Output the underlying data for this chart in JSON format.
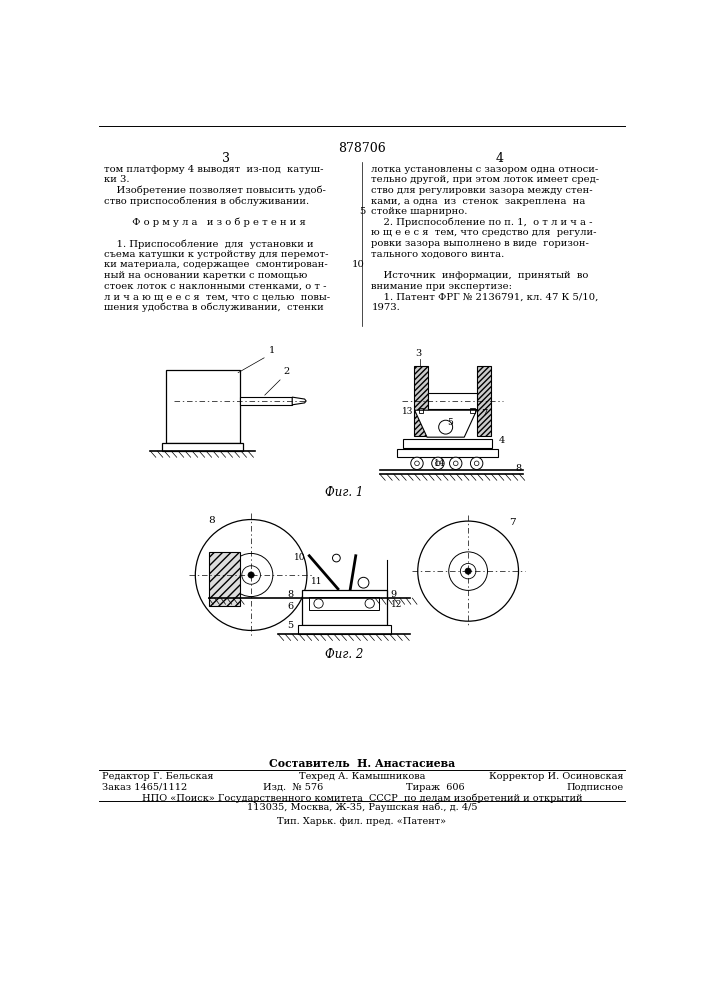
{
  "bg_color": "#ffffff",
  "page_number_center": "878706",
  "page_col_left": "3",
  "page_col_right": "4",
  "left_col_text": [
    "том платформу 4 выводят  из-под  катуш-",
    "ки 3.",
    "    Изобретение позволяет повысить удоб-",
    "ство приспособления в обслуживании.",
    "",
    "         Ф о р м у л а   и з о б р е т е н и я",
    "",
    "    1. Приспособление  для  установки и",
    "съема катушки к устройству для перемот-",
    "ки материала, содержащее  смонтирован-",
    "ный на основании каретки с помощью",
    "стоек лоток с наклонными стенками, о т -",
    "л и ч а ю щ е е с я  тем, что с целью  повы-",
    "шения удобства в обслуживании,  стенки"
  ],
  "right_col_text": [
    "лотка установлены с зазором одна относи-",
    "тельно другой, при этом лоток имеет сред-",
    "ство для регулировки зазора между стен-",
    "ками, а одна  из  стенок  закреплена  на",
    "стойке шарнирно.",
    "    2. Приспособление по п. 1,  о т л и ч а -",
    "ю щ е е с я  тем, что средство для  регули-",
    "ровки зазора выполнено в виде  горизон-",
    "тального ходового винта.",
    "",
    "    Источник  информации,  принятый  во",
    "внимание при экспертизе:",
    "    1. Патент ФРГ № 2136791, кл. 47 К 5/10,",
    "1973."
  ],
  "fig1_caption": "Фиг. 1",
  "fig2_caption": "Фиг. 2",
  "footer_composer": "Составитель  Н. Анастасиева",
  "footer_editor": "Редактор Г. Бельская",
  "footer_tech": "Техред А. Камышникова",
  "footer_corrector": "Корректор И. Осиновская",
  "footer_order": "Заказ 1465/1112",
  "footer_edition": "Изд.  № 576",
  "footer_print": "Тираж  606",
  "footer_signed": "Подписное",
  "footer_npo": "НПО «Поиск» Государственного комитета  СССР  по делам изобретений и открытий",
  "footer_address": "113035, Москва, Ж-35, Раушская наб., д. 4/5",
  "footer_tip": "Тип. Харьк. фил. пред. «Патент»"
}
